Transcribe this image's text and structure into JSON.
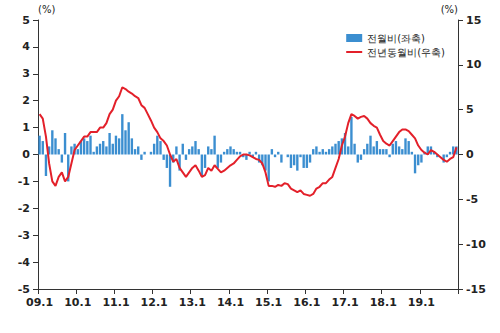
{
  "chart_data": {
    "type": "bar",
    "y_label": "(%)",
    "y2_label": "(%)",
    "categories": [
      "09.1",
      null,
      null,
      null,
      null,
      null,
      null,
      null,
      null,
      null,
      null,
      null,
      "10.1",
      null,
      null,
      null,
      null,
      null,
      null,
      null,
      null,
      null,
      null,
      null,
      "11.1",
      null,
      null,
      null,
      null,
      null,
      null,
      null,
      null,
      null,
      null,
      null,
      "12.1",
      null,
      null,
      null,
      null,
      null,
      null,
      null,
      null,
      null,
      null,
      null,
      "13.1",
      null,
      null,
      null,
      null,
      null,
      null,
      null,
      null,
      null,
      null,
      null,
      "14.1",
      null,
      null,
      null,
      null,
      null,
      null,
      null,
      null,
      null,
      null,
      null,
      "15.1",
      null,
      null,
      null,
      null,
      null,
      null,
      null,
      null,
      null,
      null,
      null,
      "16.1",
      null,
      null,
      null,
      null,
      null,
      null,
      null,
      null,
      null,
      null,
      null,
      "17.1",
      null,
      null,
      null,
      null,
      null,
      null,
      null,
      null,
      null,
      null,
      null,
      "18.1",
      null,
      null,
      null,
      null,
      null,
      null,
      null,
      null,
      null,
      null,
      null,
      "19.1",
      null,
      null,
      null,
      null,
      null,
      null,
      null,
      null,
      null,
      null,
      null
    ],
    "series": [
      {
        "name": "전월비(좌축)",
        "type": "bar",
        "color": "#3b8ed0",
        "values": [
          0.7,
          0.5,
          -0.8,
          0.3,
          0.9,
          0.6,
          0.2,
          -0.3,
          0.8,
          -1.0,
          0.3,
          0.4,
          0.2,
          0.5,
          0.6,
          0.5,
          0.7,
          0.1,
          0.3,
          0.4,
          0.5,
          0.3,
          0.8,
          0.4,
          0.7,
          0.6,
          1.5,
          0.9,
          1.2,
          0.6,
          0.2,
          0.3,
          -0.2,
          0.1,
          0.0,
          0.1,
          0.4,
          0.7,
          0.5,
          -0.2,
          -0.5,
          -1.2,
          -0.3,
          0.3,
          -0.6,
          0.4,
          -0.2,
          0.2,
          0.3,
          0.5,
          0.2,
          -0.8,
          -0.5,
          0.3,
          0.2,
          0.7,
          -0.5,
          -0.3,
          0.1,
          0.2,
          0.3,
          0.2,
          0.1,
          0.1,
          -0.1,
          -0.2,
          0.1,
          -0.1,
          0.1,
          -0.3,
          -0.4,
          -0.6,
          -1.0,
          0.2,
          -0.1,
          0.1,
          -0.3,
          0.0,
          -0.1,
          -0.5,
          -0.4,
          -0.6,
          -0.1,
          -0.5,
          -0.5,
          -0.3,
          0.2,
          0.3,
          0.1,
          0.2,
          0.1,
          0.2,
          0.3,
          0.4,
          0.5,
          0.6,
          0.8,
          0.3,
          1.4,
          0.4,
          -0.3,
          -0.2,
          0.2,
          0.4,
          0.7,
          0.3,
          0.5,
          0.2,
          0.2,
          0.2,
          -0.1,
          0.4,
          0.5,
          0.3,
          0.2,
          0.6,
          0.5,
          0.1,
          -0.7,
          -0.4,
          -0.3,
          0.1,
          0.3,
          0.3,
          0.1,
          -0.1,
          0.0,
          -0.3,
          -0.1,
          0.1,
          0.3,
          0.3
        ]
      },
      {
        "name": "전년동월비(우축)",
        "type": "line",
        "axis": "y2",
        "color": "#e3202a",
        "values": [
          4.5,
          4.0,
          2.0,
          -1.0,
          -3.0,
          -3.5,
          -2.5,
          -2.0,
          -3.0,
          -2.5,
          -1.0,
          0.5,
          1.0,
          1.5,
          2.0,
          2.0,
          2.5,
          2.5,
          2.5,
          3.0,
          3.0,
          3.5,
          4.5,
          5.0,
          6.0,
          6.5,
          7.5,
          7.3,
          7.0,
          6.8,
          6.5,
          6.3,
          5.5,
          5.2,
          4.5,
          3.8,
          3.0,
          2.5,
          1.8,
          1.5,
          1.0,
          0.0,
          -0.8,
          -0.5,
          -1.5,
          -2.0,
          -2.5,
          -2.0,
          -1.5,
          -1.2,
          -1.8,
          -2.5,
          -2.3,
          -1.5,
          -1.8,
          -1.2,
          -1.6,
          -2.0,
          -1.8,
          -1.5,
          -1.2,
          -1.0,
          -0.6,
          -0.2,
          0.0,
          0.0,
          -0.1,
          -0.3,
          -0.5,
          -0.6,
          -1.0,
          -2.0,
          -3.5,
          -3.5,
          -3.6,
          -3.4,
          -3.5,
          -3.2,
          -3.3,
          -3.8,
          -4.0,
          -4.2,
          -4.0,
          -4.4,
          -4.5,
          -4.6,
          -4.4,
          -3.8,
          -3.6,
          -3.2,
          -3.2,
          -2.8,
          -2.5,
          -1.5,
          -0.5,
          1.0,
          2.0,
          3.5,
          4.5,
          4.3,
          4.0,
          4.2,
          4.3,
          4.0,
          3.5,
          3.2,
          3.0,
          2.2,
          1.5,
          1.2,
          1.0,
          1.5,
          2.0,
          2.5,
          2.8,
          2.8,
          2.6,
          2.2,
          1.8,
          1.0,
          0.5,
          0.2,
          0.0,
          0.5,
          0.3,
          0.0,
          -0.3,
          -0.6,
          -0.8,
          -0.5,
          -0.3,
          0.8
        ]
      }
    ],
    "ylim": [
      -5,
      5
    ],
    "yticks": [
      -5,
      -4,
      -3,
      -2,
      -1,
      0,
      1,
      2,
      3,
      4,
      5
    ],
    "y2lim": [
      -15,
      15
    ],
    "y2ticks": [
      -15,
      -10,
      -5,
      0,
      5,
      10,
      15
    ],
    "grid": false,
    "legend": "upper right"
  }
}
